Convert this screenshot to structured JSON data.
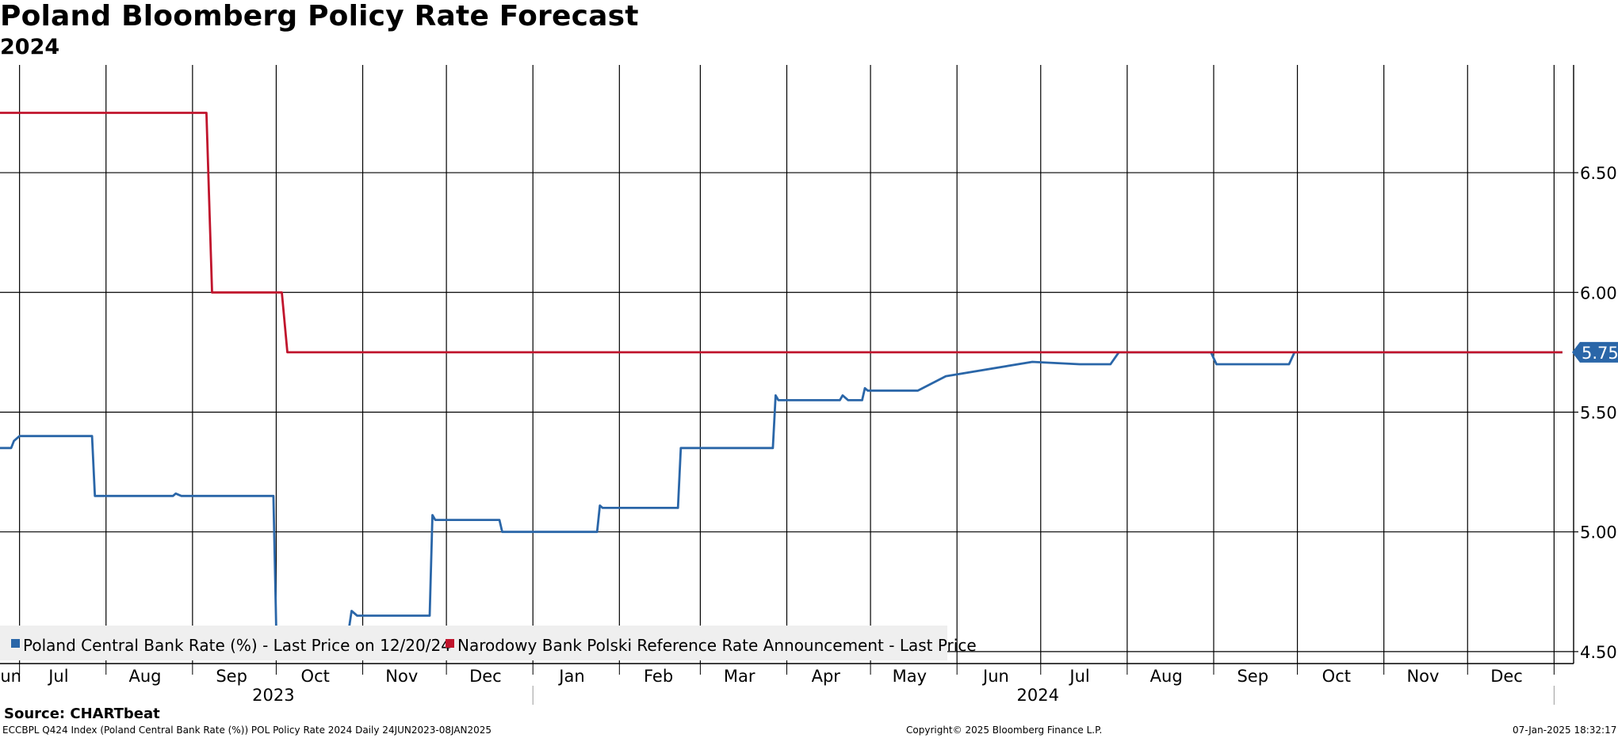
{
  "title": "Poland Bloomberg Policy Rate Forecast",
  "subtitle": "2024",
  "chart_data": {
    "type": "line",
    "x_range": [
      "2023-06-24",
      "2025-01-08"
    ],
    "ylim": [
      4.45,
      6.95
    ],
    "y_axis_position": "right",
    "y_ticks": [
      "4.50",
      "5.00",
      "5.50",
      "6.00",
      "6.50"
    ],
    "grid": true,
    "legend_position": "bottom-left",
    "month_labels": [
      {
        "label": "Jun",
        "date": "2023-06-27"
      },
      {
        "label": "Jul",
        "date": "2023-07-15"
      },
      {
        "label": "Aug",
        "date": "2023-08-15"
      },
      {
        "label": "Sep",
        "date": "2023-09-15"
      },
      {
        "label": "Oct",
        "date": "2023-10-15"
      },
      {
        "label": "Nov",
        "date": "2023-11-15"
      },
      {
        "label": "Dec",
        "date": "2023-12-15"
      },
      {
        "label": "Jan",
        "date": "2024-01-15"
      },
      {
        "label": "Feb",
        "date": "2024-02-15"
      },
      {
        "label": "Mar",
        "date": "2024-03-15"
      },
      {
        "label": "Apr",
        "date": "2024-04-15"
      },
      {
        "label": "May",
        "date": "2024-05-15"
      },
      {
        "label": "Jun",
        "date": "2024-06-15"
      },
      {
        "label": "Jul",
        "date": "2024-07-15"
      },
      {
        "label": "Aug",
        "date": "2024-08-15"
      },
      {
        "label": "Sep",
        "date": "2024-09-15"
      },
      {
        "label": "Oct",
        "date": "2024-10-15"
      },
      {
        "label": "Nov",
        "date": "2024-11-15"
      },
      {
        "label": "Dec",
        "date": "2024-12-15"
      }
    ],
    "year_labels": [
      {
        "label": "2023",
        "date": "2023-09-30"
      },
      {
        "label": "2024",
        "date": "2024-06-30"
      }
    ],
    "series": [
      {
        "name": "Poland Central Bank Rate (%) - Last Price on 12/20/24",
        "color": "#2a66a8",
        "points": [
          [
            "2023-06-24",
            5.35
          ],
          [
            "2023-06-28",
            5.35
          ],
          [
            "2023-06-29",
            5.38
          ],
          [
            "2023-07-01",
            5.4
          ],
          [
            "2023-07-27",
            5.4
          ],
          [
            "2023-07-28",
            5.15
          ],
          [
            "2023-08-25",
            5.15
          ],
          [
            "2023-08-26",
            5.16
          ],
          [
            "2023-08-28",
            5.15
          ],
          [
            "2023-09-30",
            5.15
          ],
          [
            "2023-10-01",
            4.6
          ],
          [
            "2023-10-02",
            4.59
          ],
          [
            "2023-10-27",
            4.59
          ],
          [
            "2023-10-28",
            4.67
          ],
          [
            "2023-10-30",
            4.65
          ],
          [
            "2023-11-25",
            4.65
          ],
          [
            "2023-11-26",
            5.07
          ],
          [
            "2023-11-27",
            5.05
          ],
          [
            "2023-12-20",
            5.05
          ],
          [
            "2023-12-21",
            5.0
          ],
          [
            "2024-01-24",
            5.0
          ],
          [
            "2024-01-25",
            5.11
          ],
          [
            "2024-01-26",
            5.1
          ],
          [
            "2024-02-22",
            5.1
          ],
          [
            "2024-02-23",
            5.35
          ],
          [
            "2024-03-27",
            5.35
          ],
          [
            "2024-03-28",
            5.57
          ],
          [
            "2024-03-29",
            5.55
          ],
          [
            "2024-04-20",
            5.55
          ],
          [
            "2024-04-21",
            5.57
          ],
          [
            "2024-04-23",
            5.55
          ],
          [
            "2024-04-28",
            5.55
          ],
          [
            "2024-04-29",
            5.6
          ],
          [
            "2024-04-30",
            5.59
          ],
          [
            "2024-05-18",
            5.59
          ],
          [
            "2024-05-28",
            5.65
          ],
          [
            "2024-06-28",
            5.71
          ],
          [
            "2024-07-15",
            5.7
          ],
          [
            "2024-07-26",
            5.7
          ],
          [
            "2024-07-29",
            5.75
          ],
          [
            "2024-08-31",
            5.75
          ],
          [
            "2024-09-02",
            5.7
          ],
          [
            "2024-09-28",
            5.7
          ],
          [
            "2024-09-30",
            5.75
          ],
          [
            "2025-01-04",
            5.75
          ]
        ]
      },
      {
        "name": "Narodowy Bank Polski Reference Rate Announcement - Last Price",
        "color": "#c0142c",
        "points": [
          [
            "2023-06-24",
            6.75
          ],
          [
            "2023-09-06",
            6.75
          ],
          [
            "2023-09-08",
            6.0
          ],
          [
            "2023-10-03",
            6.0
          ],
          [
            "2023-10-05",
            5.75
          ],
          [
            "2025-01-04",
            5.75
          ]
        ]
      }
    ],
    "last_value_label": "5.75"
  },
  "legend": [
    {
      "label": "Poland Central Bank Rate (%) - Last Price on 12/20/24",
      "color": "#2a66a8"
    },
    {
      "label": "Narodowy Bank Polski Reference Rate Announcement - Last Price",
      "color": "#c0142c"
    }
  ],
  "footer": {
    "source": "Source: CHARTbeat",
    "left_note": "ECCBPL Q424 Index (Poland Central Bank Rate (%)) POL Policy Rate 2024  Daily 24JUN2023-08JAN2025",
    "copyright": "Copyright© 2025 Bloomberg Finance L.P.",
    "timestamp": "07-Jan-2025 18:32:17"
  }
}
